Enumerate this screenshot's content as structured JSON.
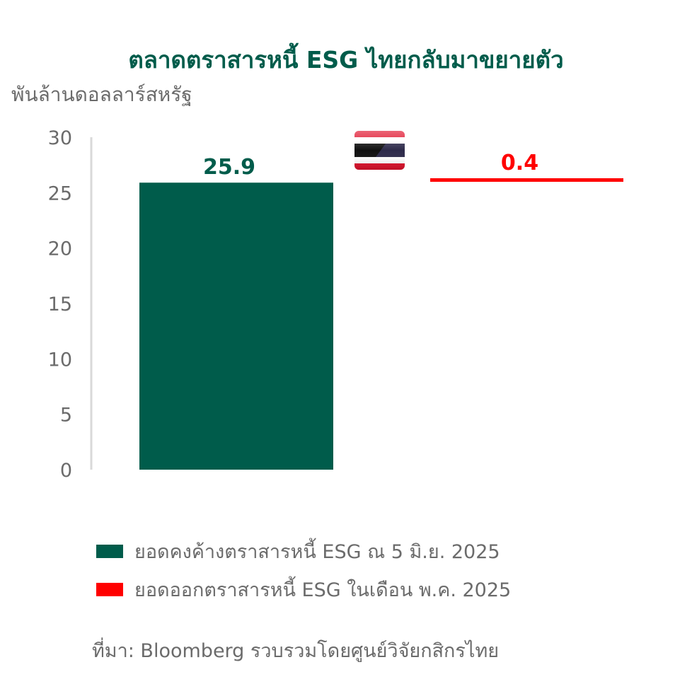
{
  "title": "ตลาดตราสารหนี้ ESG ไทยกลับมาขยายตัว",
  "source": "ที่มา: Bloomberg รวบรวมโดยศูนย์วิจัยกสิกรไทย",
  "colors": {
    "title": "#005C4B",
    "series_outstanding": "#005C4B",
    "series_issuance": "#FF0000",
    "text_gray": "#6b6b6b",
    "axis_line": "#d9d9d9"
  },
  "icons": {
    "flag": "thailand-flag-icon"
  },
  "chart_data": {
    "type": "bar",
    "ylabel": "พันล้านดอลลาร์สหรัฐ",
    "ylim": [
      0,
      30
    ],
    "yticks": [
      0,
      5,
      10,
      15,
      20,
      25,
      30
    ],
    "grid": false,
    "legend_position": "bottom",
    "series": [
      {
        "name": "ยอดคงค้างตราสารหนี้ ESG ณ 5 มิ.ย. 2025",
        "value": 25.9,
        "label": "25.9",
        "color": "#005C4B"
      },
      {
        "name": "ยอดออกตราสารหนี้ ESG ในเดือน พ.ค. 2025",
        "value": 0.4,
        "label": "0.4",
        "color": "#FF0000"
      }
    ]
  }
}
